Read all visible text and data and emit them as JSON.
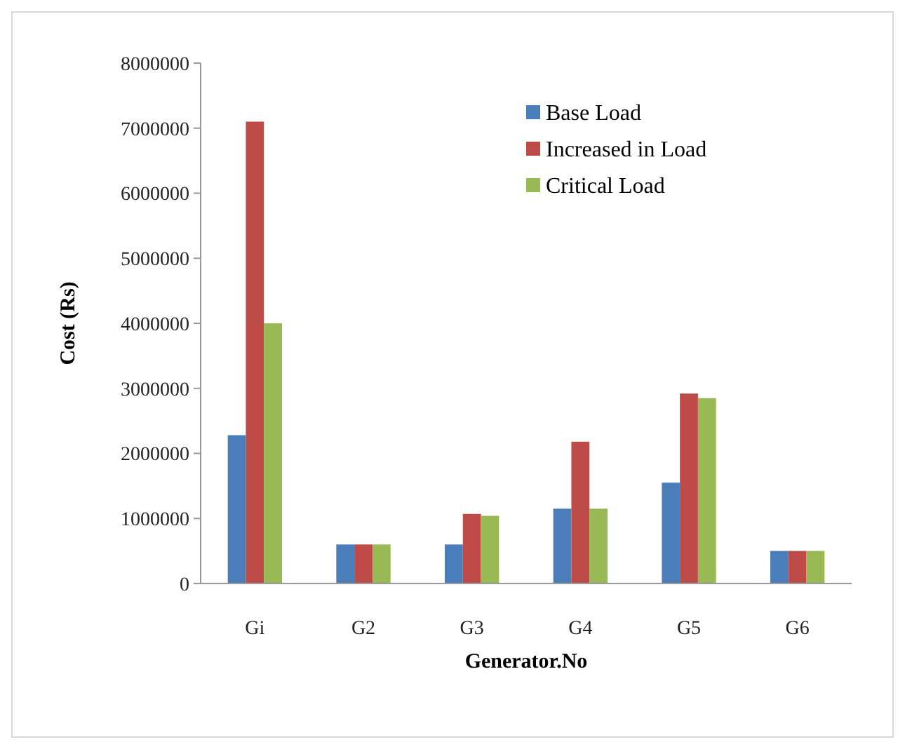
{
  "chart_data": {
    "type": "bar",
    "xlabel": "Generator.No",
    "ylabel": "Cost (Rs)",
    "categories": [
      "Gi",
      "G2",
      "G3",
      "G4",
      "G5",
      "G6"
    ],
    "series": [
      {
        "name": "Base Load",
        "color": "#4a7ebb",
        "values": [
          2280000,
          600000,
          600000,
          1150000,
          1550000,
          500000
        ]
      },
      {
        "name": "Increased in Load",
        "color": "#be4b48",
        "values": [
          7100000,
          600000,
          1070000,
          2180000,
          2920000,
          500000
        ]
      },
      {
        "name": "Critical Load",
        "color": "#98b954",
        "values": [
          4000000,
          600000,
          1040000,
          1150000,
          2850000,
          500000
        ]
      }
    ],
    "ylim": [
      0,
      8000000
    ],
    "yticks": [
      0,
      1000000,
      2000000,
      3000000,
      4000000,
      5000000,
      6000000,
      7000000,
      8000000
    ],
    "grid": false,
    "legend": "top right"
  }
}
